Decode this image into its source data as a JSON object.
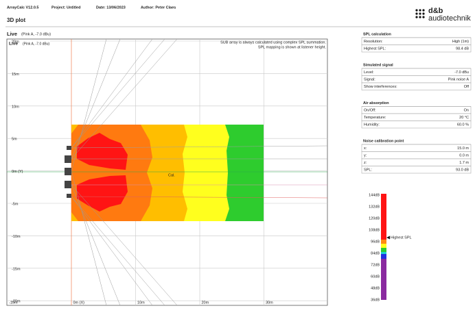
{
  "header": {
    "app": "ArrayCalc V12.0.5",
    "project": "Project: Untitled",
    "date": "Date: 13/06/2023",
    "author": "Author: Peter Claes",
    "logo": [
      "d&b",
      "audiotechnik"
    ]
  },
  "page_title": "3D plot",
  "plot": {
    "title": "Live",
    "subtitle": "(Pink A, -7.0 dBu)",
    "inner_title": "Live",
    "inner_subtitle": "(Pink A, -7.0 dBu)",
    "notes": [
      "SUB array is always calculated using complex SPL summation.",
      "SPL mapping is shown at listener height."
    ],
    "y_labels": [
      "20m",
      "15m",
      "10m",
      "5m",
      "0m (Y)",
      "-5m",
      "-10m",
      "-15m",
      "-20m"
    ],
    "x_labels": [
      "-10m",
      "0m (X)",
      "10m",
      "20m",
      "30m"
    ],
    "cal_label": "Cal."
  },
  "panels": [
    {
      "title": "SPL calculation",
      "rows": [
        [
          "Resolution:",
          "High (1m)"
        ],
        [
          "Highest SPL:",
          "98.4 dB"
        ]
      ]
    },
    {
      "title": "Simulated signal",
      "rows": [
        [
          "Level:",
          "-7.0 dBu"
        ],
        [
          "Signal:",
          "Pink noise A"
        ],
        [
          "Show interferences:",
          "Off"
        ]
      ]
    },
    {
      "title": "Air absorption",
      "rows": [
        [
          "On/Off:",
          "On"
        ],
        [
          "Temperature:",
          "20 °C"
        ],
        [
          "Humidity:",
          "60.0 %"
        ]
      ]
    },
    {
      "title": "Noise calibration point",
      "rows": [
        [
          "x:",
          "15.0 m"
        ],
        [
          "y:",
          "0.0 m"
        ],
        [
          "z:",
          "1.7 m"
        ],
        [
          "SPL:",
          "93.0 dB"
        ]
      ]
    }
  ],
  "scale": {
    "labels": [
      "144dB",
      "132dB",
      "120dB",
      "108dB",
      "96dB",
      "84dB",
      "72dB",
      "60dB",
      "48dB",
      "36dB"
    ],
    "marker": "Highest SPL"
  }
}
